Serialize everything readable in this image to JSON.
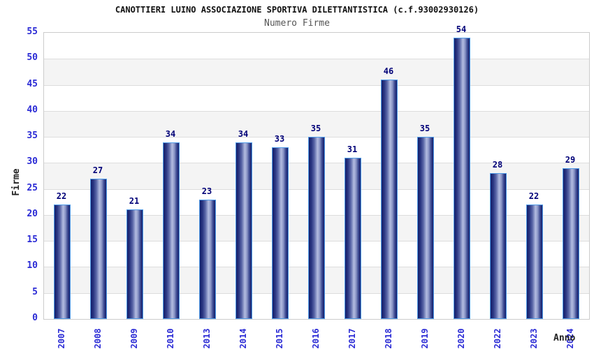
{
  "chart_data": {
    "type": "bar",
    "title": "CANOTTIERI LUINO ASSOCIAZIONE SPORTIVA DILETTANTISTICA (c.f.93002930126)",
    "subtitle": "Numero Firme",
    "xlabel": "Anno",
    "ylabel": "Firme",
    "categories": [
      "2007",
      "2008",
      "2009",
      "2010",
      "2013",
      "2014",
      "2015",
      "2016",
      "2017",
      "2018",
      "2019",
      "2020",
      "2022",
      "2023",
      "2024"
    ],
    "values": [
      22,
      27,
      21,
      34,
      23,
      34,
      33,
      35,
      31,
      46,
      35,
      54,
      28,
      22,
      29
    ],
    "ylim": [
      0,
      55
    ],
    "y_ticks": [
      0,
      5,
      10,
      15,
      20,
      25,
      30,
      35,
      40,
      45,
      50,
      55
    ],
    "grid": "horizontal gridlines with alternating white/gray bands",
    "legend": "none",
    "bar_labels_shown": true
  },
  "colors": {
    "background": "#ffffff",
    "plot_border": "#cccccc",
    "gridline": "#dddddd",
    "band_gray": "#f4f4f4",
    "band_white": "#ffffff",
    "bar_edge_dark": "#141f6b",
    "bar_center_light": "#b3bce0",
    "bar_outline": "#4f9be8",
    "value_label": "#000078",
    "tick_label": "#2b2bd5",
    "title": "#111111",
    "subtitle": "#555555",
    "axis_title": "#222222"
  }
}
